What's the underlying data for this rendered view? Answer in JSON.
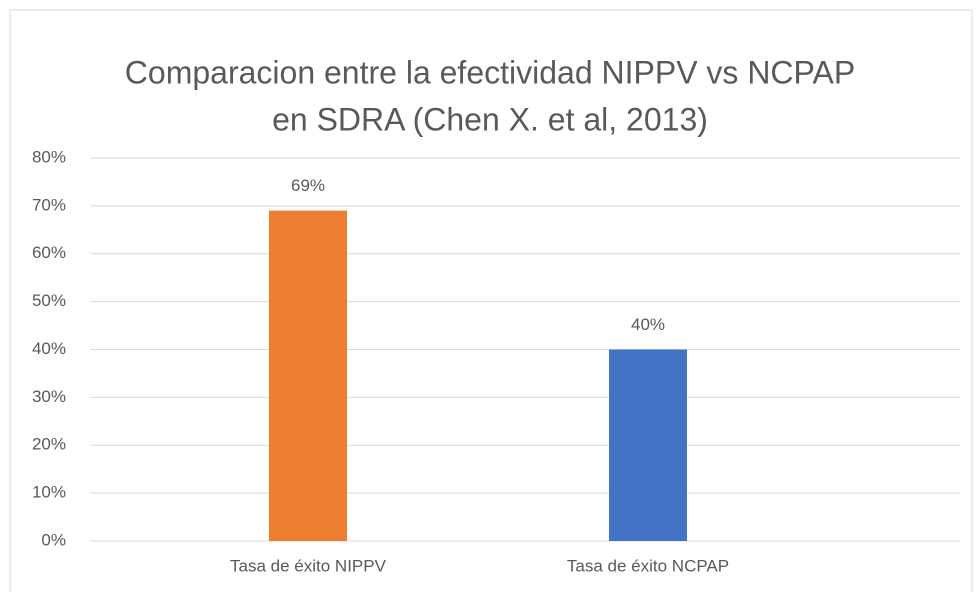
{
  "chart_data": {
    "type": "bar",
    "title": [
      "Comparacion entre la efectividad NIPPV vs NCPAP",
      "en SDRA (Chen X. et al, 2013)"
    ],
    "categories": [
      "Tasa de éxito NIPPV",
      "Tasa de éxito NCPAP"
    ],
    "values": [
      69,
      40
    ],
    "value_labels": [
      "69%",
      "40%"
    ],
    "colors": [
      "#ed7d31",
      "#4472c4"
    ],
    "ylim": [
      0,
      80
    ],
    "yticks": [
      {
        "value": 0,
        "label": "0%"
      },
      {
        "value": 10,
        "label": "10%"
      },
      {
        "value": 20,
        "label": "20%"
      },
      {
        "value": 30,
        "label": "30%"
      },
      {
        "value": 40,
        "label": "40%"
      },
      {
        "value": 50,
        "label": "50%"
      },
      {
        "value": 60,
        "label": "60%"
      },
      {
        "value": 70,
        "label": "70%"
      },
      {
        "value": 80,
        "label": "80%"
      }
    ],
    "grid": true
  }
}
